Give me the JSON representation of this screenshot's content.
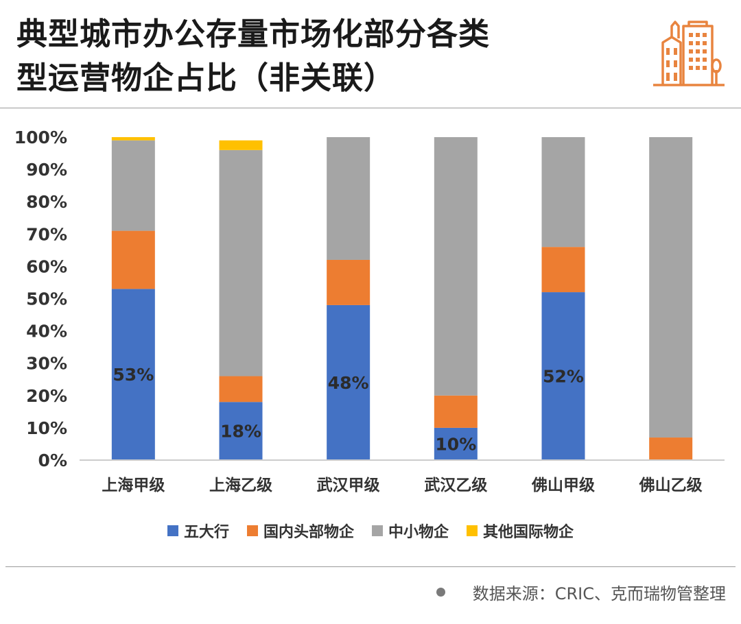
{
  "header": {
    "title_line1": "典型城市办公存量市场化部分各类",
    "title_line2": "型运营物企占比（非关联）",
    "logo_icon": "city-buildings-icon",
    "accent_color": "#e8843f"
  },
  "chart_data": {
    "type": "bar",
    "stacked": true,
    "categories": [
      "上海甲级",
      "上海乙级",
      "武汉甲级",
      "武汉乙级",
      "佛山甲级",
      "佛山乙级"
    ],
    "series": [
      {
        "name": "五大行",
        "color": "#4472c4",
        "values": [
          53,
          18,
          48,
          10,
          52,
          0
        ]
      },
      {
        "name": "国内头部物企",
        "color": "#ed7d31",
        "values": [
          18,
          8,
          14,
          10,
          14,
          7
        ]
      },
      {
        "name": "中小物企",
        "color": "#a5a5a5",
        "values": [
          28,
          70,
          38,
          80,
          34,
          93
        ]
      },
      {
        "name": "其他国际物企",
        "color": "#ffc000",
        "values": [
          1,
          3,
          0,
          0,
          0,
          0
        ]
      }
    ],
    "data_labels": [
      "53%",
      "18%",
      "48%",
      "10%",
      "52%",
      ""
    ],
    "ylim": [
      0,
      100
    ],
    "y_ticks": [
      "0%",
      "10%",
      "20%",
      "30%",
      "40%",
      "50%",
      "60%",
      "70%",
      "80%",
      "90%",
      "100%"
    ],
    "xlabel": "",
    "ylabel": "",
    "grid": false,
    "legend_position": "bottom"
  },
  "footer": {
    "source": "数据来源：CRIC、克而瑞物管整理"
  }
}
